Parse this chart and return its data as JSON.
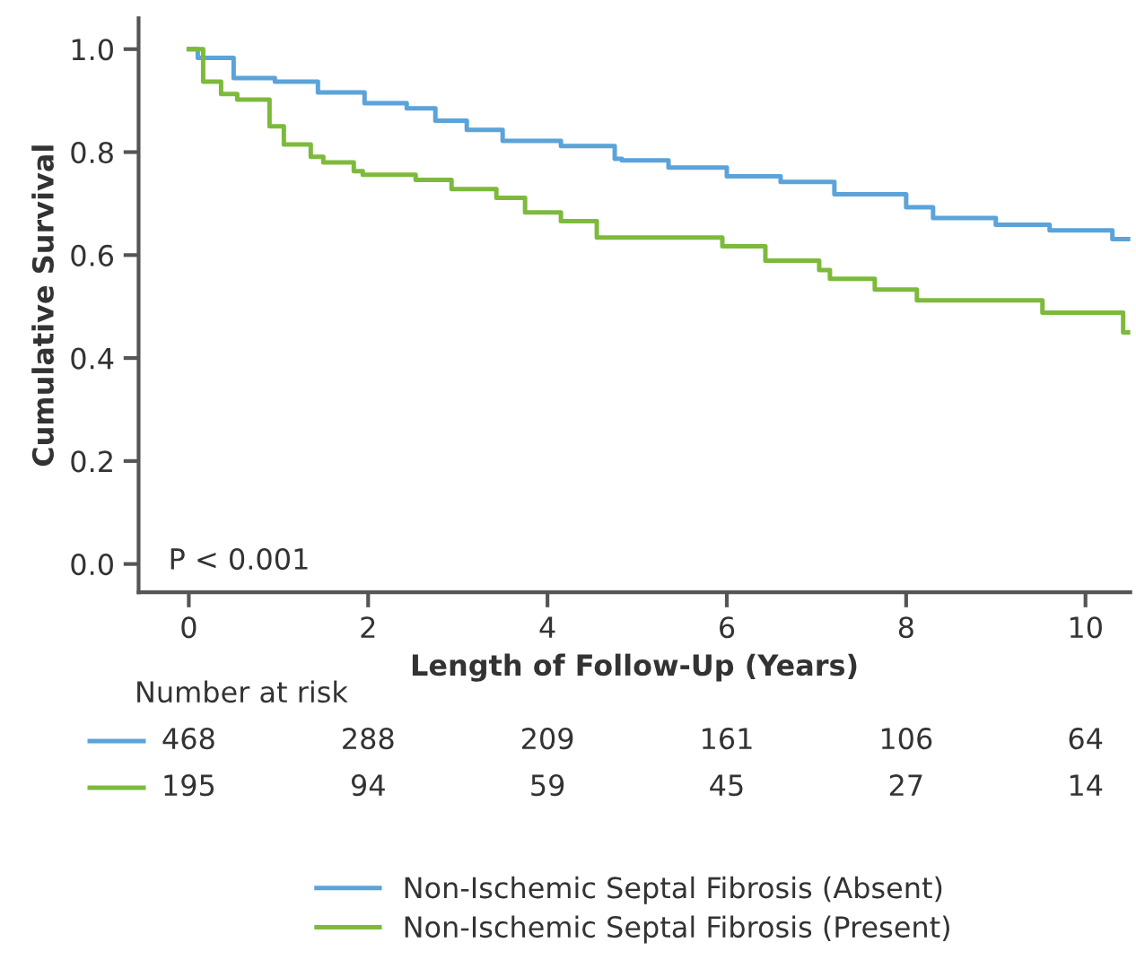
{
  "chart_data": {
    "type": "step",
    "xlabel": "Length of Follow-Up (Years)",
    "ylabel": "Cumulative Survival",
    "xlim": [
      -0.56,
      10.5
    ],
    "ylim": [
      -0.055,
      1.06
    ],
    "xticks": [
      0,
      2,
      4,
      6,
      8,
      10
    ],
    "yticks": [
      {
        "value": 0,
        "label": "0.0"
      },
      0.2,
      0.4,
      0.6,
      0.8,
      {
        "value": 1,
        "label": "1.0"
      }
    ],
    "grid": false,
    "legend": "bottom",
    "marker": "none",
    "line_style": "solid",
    "series": [
      {
        "name": "Non-Ischemic Septal Fibrosis (Absent)",
        "color": "#5ba3d9",
        "x": [
          0,
          0.1,
          0.5,
          0.96,
          1.44,
          1.96,
          2.43,
          2.75,
          3.1,
          3.5,
          4.15,
          4.75,
          4.83,
          5.35,
          6.0,
          6.6,
          7.2,
          8.0,
          8.3,
          9.0,
          9.6,
          10.3,
          10.5
        ],
        "values": [
          1.0,
          0.983,
          0.944,
          0.937,
          0.916,
          0.895,
          0.885,
          0.861,
          0.843,
          0.822,
          0.812,
          0.787,
          0.784,
          0.77,
          0.753,
          0.742,
          0.718,
          0.693,
          0.672,
          0.659,
          0.648,
          0.631,
          0.631
        ]
      },
      {
        "name": "Non-Ischemic Septal Fibrosis (Present)",
        "color": "#7dba3c",
        "x": [
          0,
          0.16,
          0.36,
          0.54,
          0.9,
          1.06,
          1.36,
          1.5,
          1.84,
          1.94,
          2.53,
          2.93,
          3.43,
          3.75,
          4.15,
          4.55,
          5.95,
          6.43,
          7.03,
          7.15,
          7.65,
          8.12,
          9.52,
          10.42,
          10.5
        ],
        "values": [
          1.0,
          0.937,
          0.913,
          0.902,
          0.85,
          0.815,
          0.791,
          0.78,
          0.763,
          0.756,
          0.746,
          0.728,
          0.711,
          0.683,
          0.666,
          0.634,
          0.617,
          0.589,
          0.571,
          0.554,
          0.533,
          0.512,
          0.488,
          0.45,
          0.45
        ]
      }
    ],
    "annotations": [
      "P < 0.001",
      "Number at risk",
      "468",
      "288",
      "209",
      "161",
      "106",
      "64",
      "195",
      "94",
      "59",
      "45",
      "27",
      "14"
    ]
  }
}
